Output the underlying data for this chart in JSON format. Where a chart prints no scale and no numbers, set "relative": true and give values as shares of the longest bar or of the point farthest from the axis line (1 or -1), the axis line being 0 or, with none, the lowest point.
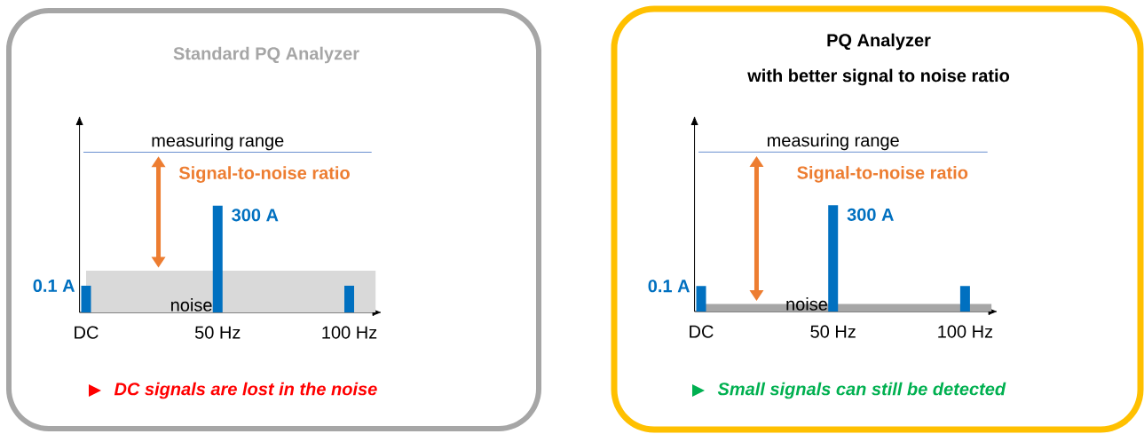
{
  "chart_data": [
    {
      "type": "bar",
      "title": "Standard PQ Analyzer",
      "categories": [
        "DC",
        "50 Hz",
        "100 Hz"
      ],
      "values": [
        0.25,
        1,
        0.25
      ],
      "color": "#0070c0",
      "relative": true,
      "ref_lines": [
        {
          "axis": "y",
          "value": 1.5,
          "label": "measuring range",
          "color": "#4472c4"
        }
      ],
      "bands": [
        {
          "axis": "y",
          "from": 0,
          "to": 0.39,
          "label": "noise",
          "color": "#d9d9d9"
        }
      ],
      "annotations": [
        "Signal-to-noise ratio",
        "DC signals are lost in the noise",
        {
          "text": "0.1 A",
          "x": "DC",
          "y": 0.25
        },
        {
          "text": "300 A",
          "x": "50 Hz",
          "y": 1
        }
      ]
    },
    {
      "type": "bar",
      "title": "PQ Analyzer",
      "subtitle": "with better signal to noise ratio",
      "categories": [
        "DC",
        "50 Hz",
        "100 Hz"
      ],
      "values": [
        0.24,
        1,
        0.24
      ],
      "color": "#0070c0",
      "relative": true,
      "ref_lines": [
        {
          "axis": "y",
          "value": 1.5,
          "label": "measuring range",
          "color": "#4472c4"
        }
      ],
      "bands": [
        {
          "axis": "y",
          "from": 0,
          "to": 0.07,
          "label": "noise",
          "color": "#a6a6a6"
        }
      ],
      "annotations": [
        "Signal-to-noise ratio",
        "Small signals can still be detected",
        {
          "text": "0.1 A",
          "x": "DC",
          "y": 0.24
        },
        {
          "text": "300 A",
          "x": "50 Hz",
          "y": 1
        }
      ]
    }
  ]
}
